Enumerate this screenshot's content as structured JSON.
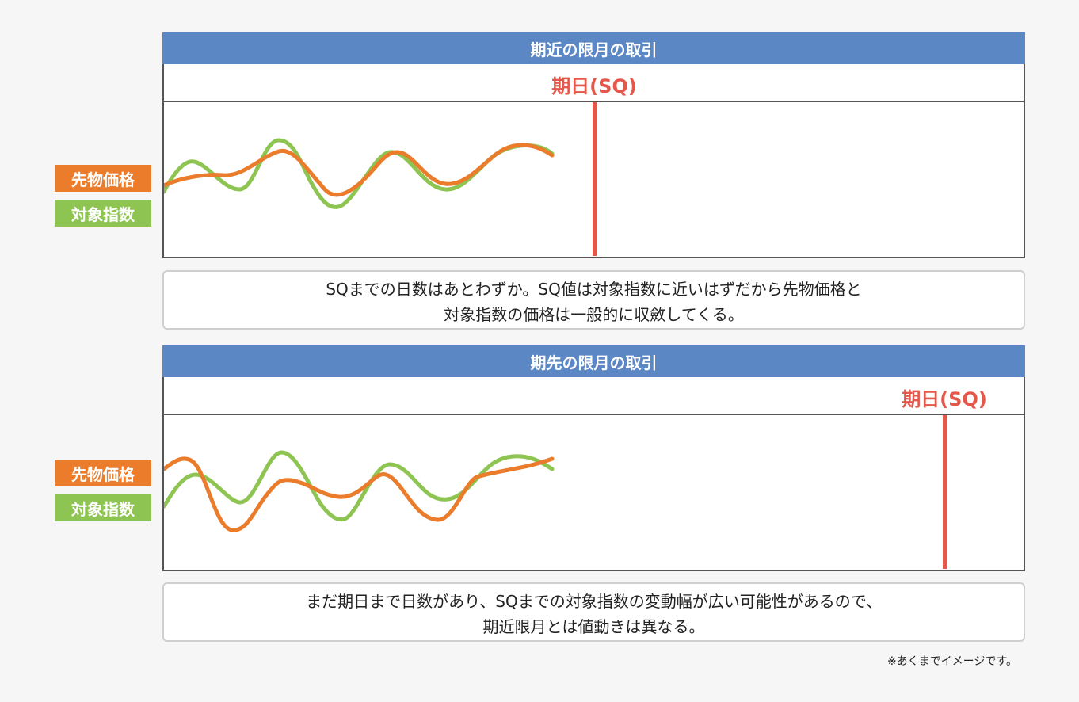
{
  "colors": {
    "header": "#5b87c5",
    "sq_line": "#e4574b",
    "futures": "#ea7c2b",
    "index": "#8ec452"
  },
  "legend": {
    "futures_label": "先物価格",
    "index_label": "対象指数"
  },
  "panels": [
    {
      "title": "期近の限月の取引",
      "sq_label": "期日(SQ)",
      "note_lines": [
        "SQまでの日数はあとわずか。SQ値は対象指数に近いはずだから先物価格と",
        "対象指数の価格は一般的に収斂してくる。"
      ]
    },
    {
      "title": "期先の限月の取引",
      "sq_label": "期日(SQ)",
      "note_lines": [
        "まだ期日まで日数があり、SQまでの対象指数の変動幅が広い可能性があるので、",
        "期近限月とは値動きは異なる。"
      ]
    }
  ],
  "footnote": "※あくまでイメージです。"
}
